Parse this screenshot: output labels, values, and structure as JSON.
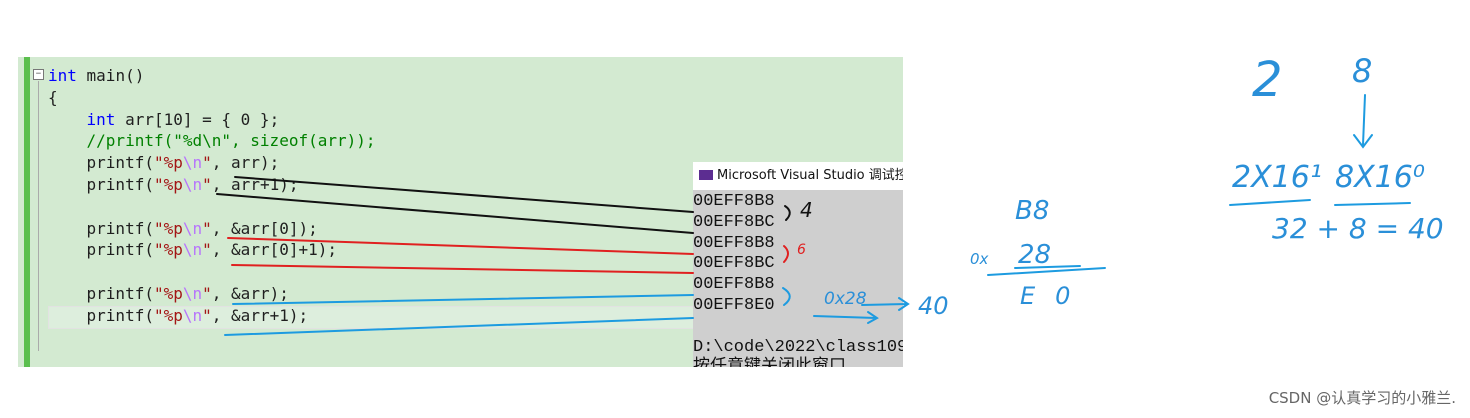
{
  "editor": {
    "lines": [
      "int main()",
      "{",
      "    int arr[10] = { 0 };",
      "    //printf(\"%d\\n\", sizeof(arr));",
      "    printf(\"%p\\n\", arr);",
      "    printf(\"%p\\n\", arr+1);",
      "",
      "    printf(\"%p\\n\", &arr[0]);",
      "    printf(\"%p\\n\", &arr[0]+1);",
      "",
      "    printf(\"%p\\n\", &arr);",
      "    printf(\"%p\\n\", &arr+1);"
    ]
  },
  "console": {
    "title": "Microsoft Visual Studio 调试控制",
    "output": [
      "00EFF8B8",
      "00EFF8BC",
      "00EFF8B8",
      "00EFF8BC",
      "00EFF8B8",
      "00EFF8E0",
      "",
      "D:\\code\\2022\\class109",
      "按任意键关闭此窗口"
    ]
  },
  "annotations": [
    "4",
    "6",
    "0x28",
    "40",
    "B8",
    "0x",
    "28",
    "E0",
    "2",
    "8",
    "2X16¹",
    "8X16⁰",
    "32 + 8 = 40"
  ],
  "footer": "CSDN @认真学习的小雅兰."
}
